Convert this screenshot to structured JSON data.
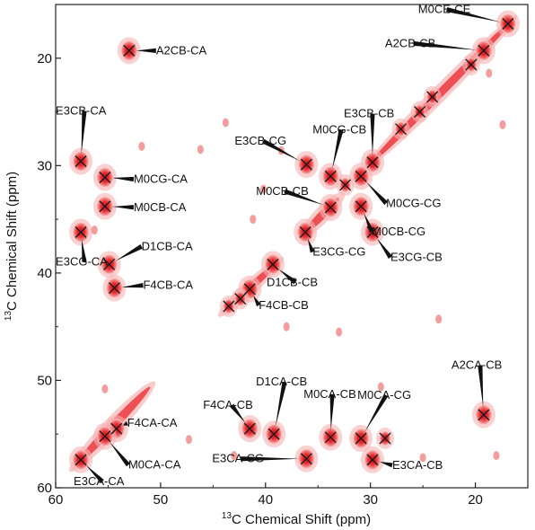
{
  "chart_data": {
    "type": "scatter",
    "subtype": "2D NMR correlation spectrum",
    "title": "",
    "xlabel_sup": "13",
    "xlabel": "C Chemical Shift (ppm)",
    "ylabel_sup": "13",
    "ylabel": "C Chemical Shift (ppm)",
    "xlim": [
      60,
      15
    ],
    "ylim": [
      15,
      60
    ],
    "x_reversed": true,
    "y_reversed": true,
    "x_ticks": [
      60,
      50,
      40,
      30,
      20
    ],
    "y_ticks": [
      20,
      30,
      40,
      50,
      60
    ],
    "grid": false,
    "legend": "none",
    "colors": {
      "contour": "#e8262d",
      "contour_light": "#f6a8a8",
      "marker": "#1a1a1a",
      "axis": "#222222"
    },
    "peaks": [
      {
        "label": "M0CE-CE",
        "x": 16.9,
        "y": 16.8
      },
      {
        "label": "A2CB-CB",
        "x": 19.2,
        "y": 19.3
      },
      {
        "label": "A2CB-CA",
        "x": 53.0,
        "y": 19.3
      },
      {
        "label": "E3CB-CB",
        "x": 29.8,
        "y": 29.7
      },
      {
        "label": "E3CB-CA",
        "x": 57.6,
        "y": 29.6
      },
      {
        "label": "M0CG-CA",
        "x": 55.3,
        "y": 31.1
      },
      {
        "label": "M0CB-CA",
        "x": 55.3,
        "y": 33.8
      },
      {
        "label": "E3CG-CA",
        "x": 57.6,
        "y": 36.2
      },
      {
        "label": "D1CB-CA",
        "x": 54.9,
        "y": 39.2
      },
      {
        "label": "F4CB-CA",
        "x": 54.4,
        "y": 41.4
      },
      {
        "label": "E3CB-CG",
        "x": 36.1,
        "y": 29.9
      },
      {
        "label": "M0CG-CB",
        "x": 33.8,
        "y": 31.0
      },
      {
        "label": "M0CB-CB",
        "x": 33.8,
        "y": 33.9
      },
      {
        "label": "M0CG-CG",
        "x": 30.9,
        "y": 31.0
      },
      {
        "label": "M0CB-CG",
        "x": 30.9,
        "y": 33.8
      },
      {
        "label": "E3CG-CG",
        "x": 36.2,
        "y": 36.2
      },
      {
        "label": "E3CG-CB",
        "x": 29.8,
        "y": 36.2
      },
      {
        "label": "D1CB-CB",
        "x": 39.3,
        "y": 39.2
      },
      {
        "label": "F4CB-CB",
        "x": 41.5,
        "y": 41.5
      },
      {
        "label": "F4CA-CA",
        "x": 54.2,
        "y": 54.5
      },
      {
        "label": "M0CA-CA",
        "x": 55.3,
        "y": 55.2
      },
      {
        "label": "E3CA-CA",
        "x": 57.6,
        "y": 57.4
      },
      {
        "label": "F4CA-CB",
        "x": 41.5,
        "y": 54.5
      },
      {
        "label": "D1CA-CB",
        "x": 39.2,
        "y": 55.0
      },
      {
        "label": "M0CA-CB",
        "x": 33.8,
        "y": 55.3
      },
      {
        "label": "M0CA-CG",
        "x": 30.9,
        "y": 55.4
      },
      {
        "label": "E3CA-CG",
        "x": 36.1,
        "y": 57.3
      },
      {
        "label": "E3CA-CB",
        "x": 29.8,
        "y": 57.4
      },
      {
        "label": "A2CA-CB",
        "x": 19.2,
        "y": 53.2
      }
    ],
    "unlabeled_markers": [
      {
        "x": 28.6,
        "y": 55.4
      },
      {
        "x": 32.4,
        "y": 31.8
      },
      {
        "x": 20.4,
        "y": 20.6
      },
      {
        "x": 24.1,
        "y": 23.6
      },
      {
        "x": 25.3,
        "y": 25.0
      },
      {
        "x": 27.1,
        "y": 26.6
      },
      {
        "x": 42.4,
        "y": 42.4
      },
      {
        "x": 43.5,
        "y": 43.1
      }
    ]
  }
}
